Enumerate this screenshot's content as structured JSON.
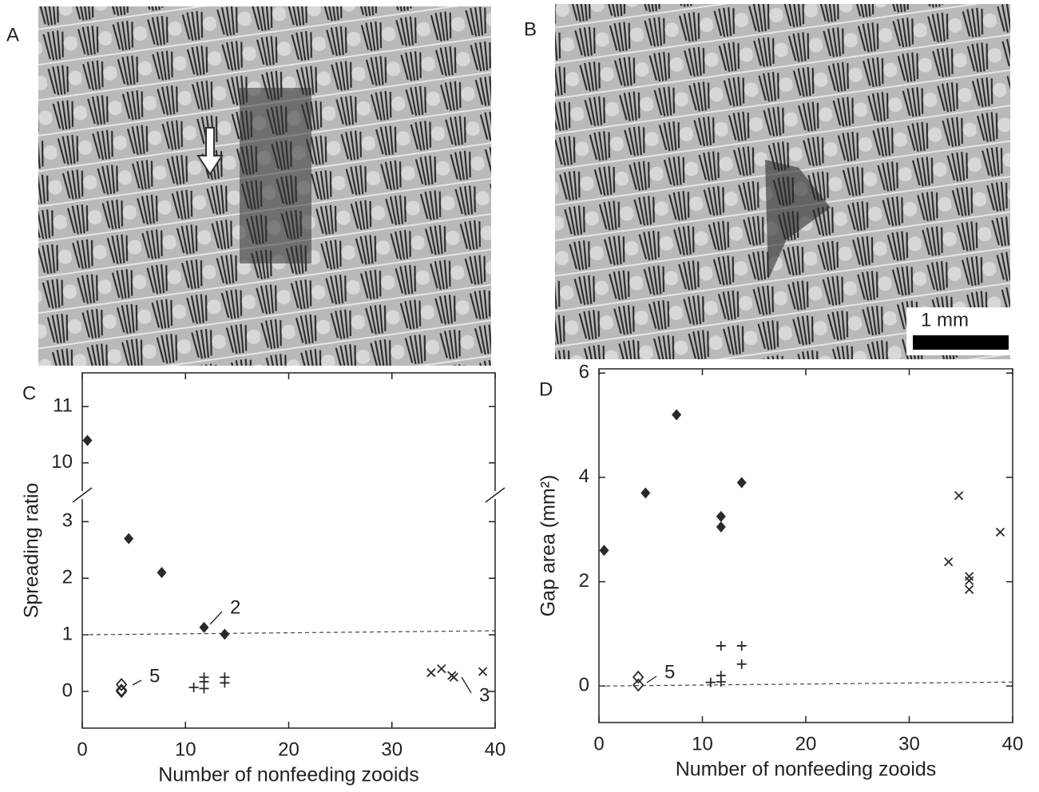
{
  "figure": {
    "panel_a": "A",
    "panel_b": "B",
    "scale_bar": "1 mm"
  },
  "chart_data": [
    {
      "type": "scatter",
      "panel": "C",
      "ylabel": "Spreading ratio",
      "xlabel": "Number of nonfeeding zooids",
      "xlim": [
        0,
        40
      ],
      "xticks": [
        0,
        10,
        20,
        30,
        40
      ],
      "ylim": [
        -0.65,
        11.6
      ],
      "ybreak": [
        3.4,
        9.5
      ],
      "yticks": [
        0,
        1,
        2,
        3,
        10,
        11
      ],
      "hline": 1,
      "series": [
        {
          "marker": "diamond",
          "color": "#2a2a2a",
          "x": [
            0.5,
            4.5,
            7.7,
            11.8,
            13.8
          ],
          "values": [
            10.4,
            2.7,
            2.1,
            1.13,
            1.01
          ]
        },
        {
          "marker": "open-diamond",
          "color": "#2a2a2a",
          "x": [
            3.8,
            3.8,
            3.8
          ],
          "values": [
            0.12,
            0.02,
            0.0
          ]
        },
        {
          "marker": "plus",
          "color": "#2a2a2a",
          "x": [
            10.8,
            11.8,
            11.8,
            11.8,
            13.8,
            13.8
          ],
          "values": [
            0.07,
            0.05,
            0.17,
            0.25,
            0.15,
            0.25
          ]
        },
        {
          "marker": "cross",
          "color": "#2a2a2a",
          "x": [
            33.8,
            34.8,
            35.8,
            36,
            38.8
          ],
          "values": [
            0.33,
            0.4,
            0.28,
            0.25,
            0.35
          ]
        }
      ],
      "annotations": [
        "2",
        "5",
        "3"
      ]
    },
    {
      "type": "scatter",
      "panel": "D",
      "ylabel": "Gap area (mm²)",
      "xlabel": "Number of nonfeeding zooids",
      "xlim": [
        0,
        40
      ],
      "xticks": [
        0,
        10,
        20,
        30,
        40
      ],
      "ylim": [
        -0.7,
        6.08
      ],
      "yticks": [
        0,
        2,
        4,
        6
      ],
      "hline": 0,
      "series": [
        {
          "marker": "diamond",
          "color": "#2a2a2a",
          "x": [
            0.5,
            4.5,
            7.5,
            11.8,
            11.8,
            13.8
          ],
          "values": [
            2.6,
            3.7,
            5.2,
            3.25,
            3.05,
            3.9
          ]
        },
        {
          "marker": "open-diamond",
          "color": "#2a2a2a",
          "x": [
            3.8,
            3.8
          ],
          "values": [
            0.17,
            0.02
          ]
        },
        {
          "marker": "plus",
          "color": "#2a2a2a",
          "x": [
            10.8,
            11.8,
            11.8,
            11.8,
            13.8,
            13.8
          ],
          "values": [
            0.07,
            0.77,
            0.08,
            0.2,
            0.77,
            0.42
          ]
        },
        {
          "marker": "cross",
          "color": "#2a2a2a",
          "x": [
            33.8,
            34.8,
            35.8,
            35.8,
            35.8,
            38.8
          ],
          "values": [
            2.38,
            3.65,
            2.1,
            2.02,
            1.85,
            2.95
          ]
        }
      ],
      "annotations": [
        "5"
      ]
    }
  ]
}
